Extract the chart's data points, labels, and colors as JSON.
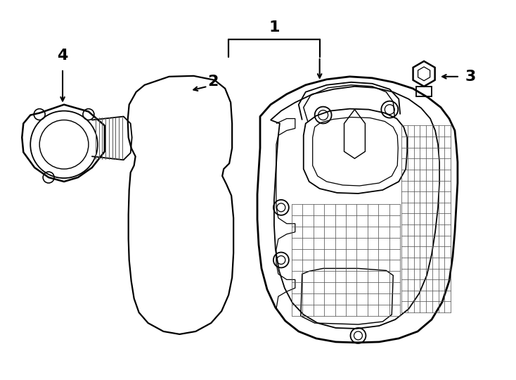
{
  "background_color": "#ffffff",
  "line_color": "#000000",
  "line_width": 1.3,
  "fig_width": 7.34,
  "fig_height": 5.4
}
